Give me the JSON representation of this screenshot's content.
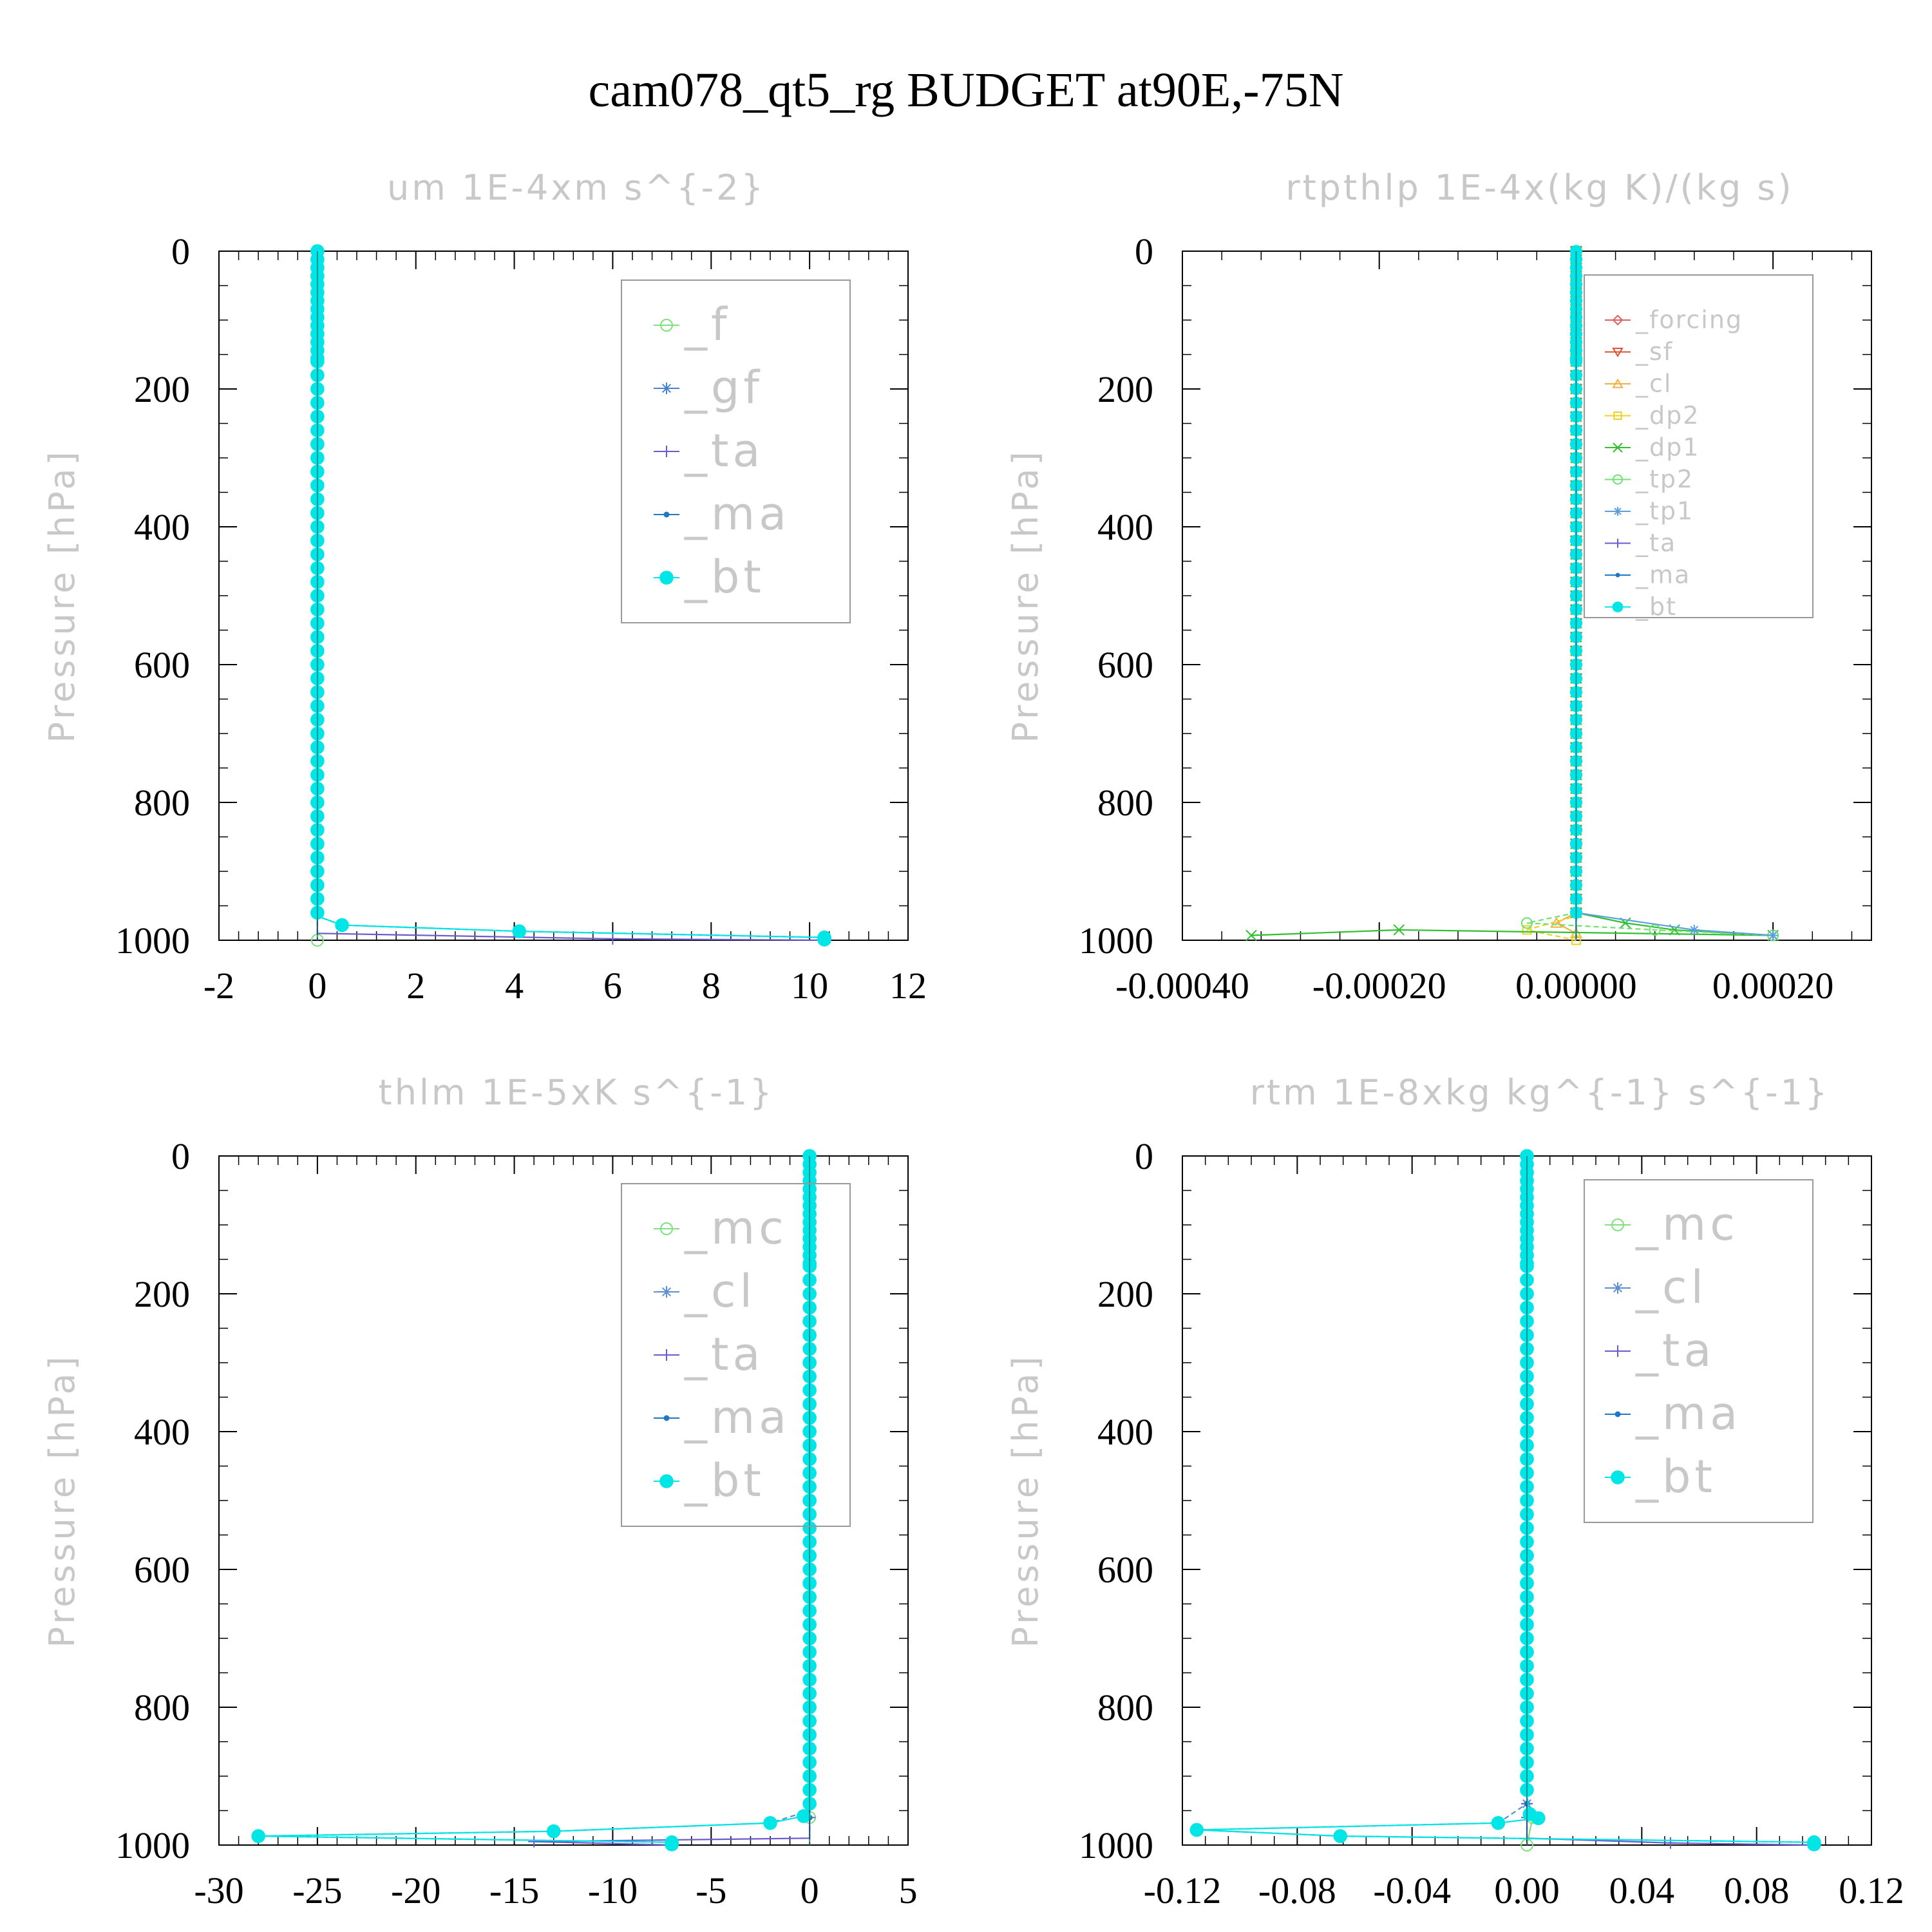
{
  "page_title": "cam078_qt5_rg  BUDGET at90E,-75N",
  "colors": {
    "faint_text": "#c8c8c8",
    "axis": "#000000",
    "legend_border": "#999999",
    "f": "#7fe07f",
    "gf": "#4682d2",
    "ta": "#6a5acd",
    "ma": "#1e78c8",
    "bt": "#00e5e5",
    "forcing": "#e06060",
    "sf": "#e05030",
    "cl_orange": "#f0b040",
    "dp2": "#f0d020",
    "dp1": "#30c030",
    "tp2": "#70e070",
    "tp1": "#5aa0e0",
    "mc": "#7fe07f",
    "cl": "#5a8fd0"
  },
  "chart_data": [
    {
      "type": "line",
      "title": "um   1E-4xm s^{-2}",
      "ylabel": "Pressure [hPa]",
      "xlim": [
        -2,
        12
      ],
      "xticks": [
        -2,
        0,
        2,
        4,
        6,
        8,
        10,
        12
      ],
      "xtick_labels": [
        "-2",
        "0",
        "2",
        "4",
        "6",
        "8",
        "10",
        "12"
      ],
      "ylim": [
        1000,
        0
      ],
      "yticks": [
        0,
        200,
        400,
        600,
        800,
        1000
      ],
      "ytick_labels": [
        "0",
        "200",
        "400",
        "600",
        "800",
        "1000"
      ],
      "legend_position": "top-right",
      "series": [
        {
          "name": "_f",
          "color": "#7fe07f",
          "marker": "circle-open",
          "points": [
            [
              0,
              0
            ],
            [
              0,
              950
            ],
            [
              0,
              1000
            ]
          ]
        },
        {
          "name": "_gf",
          "color": "#4682d2",
          "marker": "asterisk",
          "points": [
            [
              0,
              0
            ],
            [
              0,
              965
            ],
            [
              0.5,
              978
            ],
            [
              4.1,
              987
            ],
            [
              10.3,
              996
            ]
          ]
        },
        {
          "name": "_ta",
          "color": "#6a5acd",
          "marker": "plus",
          "points": [
            [
              0,
              0
            ],
            [
              0,
              990
            ],
            [
              6,
              998
            ],
            [
              10.3,
              1000
            ]
          ]
        },
        {
          "name": "_ma",
          "color": "#1e78c8",
          "marker": "dot",
          "points": [
            [
              0,
              0
            ],
            [
              0,
              1000
            ]
          ]
        },
        {
          "name": "_bt",
          "color": "#00e5e5",
          "marker": "circle-filled",
          "points": [
            [
              0,
              0
            ],
            [
              0,
              965
            ],
            [
              0.5,
              978
            ],
            [
              4.1,
              987
            ],
            [
              10.3,
              996
            ],
            [
              10.3,
              999
            ]
          ]
        }
      ]
    },
    {
      "type": "line",
      "title": "rtpthlp   1E-4x(kg K)/(kg s)",
      "ylabel": "Pressure [hPa]",
      "xlim": [
        -0.0004,
        0.0003
      ],
      "xticks": [
        -0.0004,
        -0.0002,
        0.0,
        0.0002
      ],
      "xtick_labels": [
        "-0.00040",
        "-0.00020",
        "0.00000",
        "0.00020"
      ],
      "ylim": [
        1000,
        0
      ],
      "yticks": [
        0,
        200,
        400,
        600,
        800,
        1000
      ],
      "ytick_labels": [
        "0",
        "200",
        "400",
        "600",
        "800",
        "1000"
      ],
      "legend_position": "top-right",
      "series": [
        {
          "name": "_forcing",
          "color": "#e06060",
          "marker": "diamond",
          "points": [
            [
              0,
              0
            ],
            [
              0,
              1000
            ]
          ]
        },
        {
          "name": "_sf",
          "color": "#e05030",
          "marker": "triangle-down",
          "points": [
            [
              0,
              0
            ],
            [
              0,
              1000
            ]
          ]
        },
        {
          "name": "_cl",
          "color": "#f0b040",
          "marker": "triangle-up",
          "points": [
            [
              0,
              0
            ],
            [
              0,
              960
            ],
            [
              -2e-05,
              975
            ],
            [
              0,
              990
            ]
          ]
        },
        {
          "name": "_dp2",
          "color": "#f0d020",
          "marker": "square",
          "points": [
            [
              0,
              0
            ],
            [
              0,
              965
            ],
            [
              -5e-05,
              985
            ],
            [
              0,
              1000
            ]
          ]
        },
        {
          "name": "_dp1",
          "color": "#30c030",
          "marker": "cross",
          "points": [
            [
              0,
              0
            ],
            [
              0,
              960
            ],
            [
              5e-05,
              975
            ],
            [
              0.0001,
              985
            ],
            [
              0.0002,
              993
            ],
            [
              -0.00018,
              985
            ],
            [
              -0.00033,
              993
            ]
          ]
        },
        {
          "name": "_tp2",
          "color": "#70e070",
          "marker": "circle-open",
          "points": [
            [
              0,
              0
            ],
            [
              0,
              960
            ],
            [
              -5e-05,
              975
            ],
            [
              8e-05,
              985
            ],
            [
              0.0002,
              993
            ]
          ]
        },
        {
          "name": "_tp1",
          "color": "#5aa0e0",
          "marker": "asterisk",
          "points": [
            [
              0,
              0
            ],
            [
              0,
              960
            ],
            [
              0.00012,
              985
            ],
            [
              0.0002,
              993
            ]
          ]
        },
        {
          "name": "_ta",
          "color": "#6a5acd",
          "marker": "plus",
          "points": [
            [
              0,
              0
            ],
            [
              0,
              1000
            ]
          ]
        },
        {
          "name": "_ma",
          "color": "#1e78c8",
          "marker": "dot",
          "points": [
            [
              0,
              0
            ],
            [
              0,
              1000
            ]
          ]
        },
        {
          "name": "_bt",
          "color": "#00e5e5",
          "marker": "circle-filled",
          "points": [
            [
              0,
              0
            ],
            [
              0,
              1000
            ]
          ]
        }
      ]
    },
    {
      "type": "line",
      "title": "thlm   1E-5xK s^{-1}",
      "ylabel": "Pressure [hPa]",
      "xlim": [
        -30,
        5
      ],
      "xticks": [
        -30,
        -25,
        -20,
        -15,
        -10,
        -5,
        0,
        5
      ],
      "xtick_labels": [
        "-30",
        "-25",
        "-20",
        "-15",
        "-10",
        "-5",
        "0",
        "5"
      ],
      "ylim": [
        1000,
        0
      ],
      "yticks": [
        0,
        200,
        400,
        600,
        800,
        1000
      ],
      "ytick_labels": [
        "0",
        "200",
        "400",
        "600",
        "800",
        "1000"
      ],
      "legend_position": "top-right",
      "series": [
        {
          "name": "_mc",
          "color": "#7fe07f",
          "marker": "circle-open",
          "points": [
            [
              0,
              0
            ],
            [
              0,
              1000
            ]
          ]
        },
        {
          "name": "_cl",
          "color": "#5a8fd0",
          "marker": "asterisk",
          "points": [
            [
              0,
              0
            ],
            [
              0,
              950
            ],
            [
              -2,
              968
            ],
            [
              -13,
              980
            ],
            [
              -28,
              987
            ],
            [
              -7,
              996
            ]
          ]
        },
        {
          "name": "_ta",
          "color": "#6a5acd",
          "marker": "plus",
          "points": [
            [
              0,
              0
            ],
            [
              0,
              990
            ],
            [
              -14,
              995
            ],
            [
              -7,
              1000
            ]
          ]
        },
        {
          "name": "_ma",
          "color": "#1e78c8",
          "marker": "dot",
          "points": [
            [
              0,
              0
            ],
            [
              0,
              1000
            ]
          ]
        },
        {
          "name": "_bt",
          "color": "#00e5e5",
          "marker": "circle-filled",
          "points": [
            [
              0,
              0
            ],
            [
              0,
              945
            ],
            [
              -0.3,
              958
            ],
            [
              -2,
              968
            ],
            [
              -13,
              980
            ],
            [
              -28,
              987
            ],
            [
              -7,
              996
            ],
            [
              -7,
              999
            ]
          ]
        }
      ]
    },
    {
      "type": "line",
      "title": "rtm   1E-8xkg kg^{-1} s^{-1}",
      "ylabel": "Pressure [hPa]",
      "xlim": [
        -0.12,
        0.12
      ],
      "xticks": [
        -0.12,
        -0.08,
        -0.04,
        0.0,
        0.04,
        0.08,
        0.12
      ],
      "xtick_labels": [
        "-0.12",
        "-0.08",
        "-0.04",
        "0.00",
        "0.04",
        "0.08",
        "0.12"
      ],
      "ylim": [
        1000,
        0
      ],
      "yticks": [
        0,
        200,
        400,
        600,
        800,
        1000
      ],
      "ytick_labels": [
        "0",
        "200",
        "400",
        "600",
        "800",
        "1000"
      ],
      "legend_position": "top-right",
      "series": [
        {
          "name": "_mc",
          "color": "#7fe07f",
          "marker": "circle-open",
          "points": [
            [
              0,
              0
            ],
            [
              0,
              930
            ],
            [
              0.002,
              960
            ],
            [
              0,
              1000
            ]
          ]
        },
        {
          "name": "_cl",
          "color": "#5a8fd0",
          "marker": "asterisk",
          "points": [
            [
              0,
              0
            ],
            [
              0,
              940
            ],
            [
              -0.01,
              968
            ],
            [
              -0.115,
              978
            ],
            [
              -0.065,
              987
            ],
            [
              0.1,
              996
            ]
          ]
        },
        {
          "name": "_ta",
          "color": "#6a5acd",
          "marker": "plus",
          "points": [
            [
              0,
              0
            ],
            [
              0,
              990
            ],
            [
              0.05,
              997
            ],
            [
              0.1,
              1000
            ]
          ]
        },
        {
          "name": "_ma",
          "color": "#1e78c8",
          "marker": "dot",
          "points": [
            [
              0,
              0
            ],
            [
              0,
              1000
            ]
          ]
        },
        {
          "name": "_bt",
          "color": "#00e5e5",
          "marker": "circle-filled",
          "points": [
            [
              0,
              0
            ],
            [
              0,
              930
            ],
            [
              0.001,
              955
            ],
            [
              0.004,
              961
            ],
            [
              -0.01,
              968
            ],
            [
              -0.115,
              978
            ],
            [
              -0.065,
              987
            ],
            [
              0.1,
              996
            ],
            [
              0.1,
              999
            ]
          ]
        }
      ]
    }
  ]
}
